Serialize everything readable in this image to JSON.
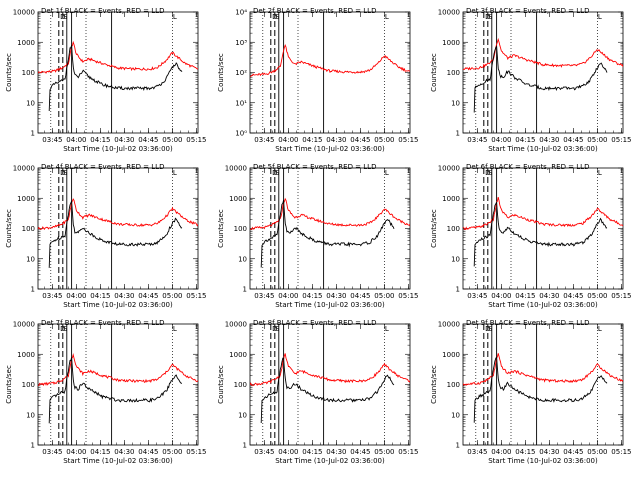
{
  "figure": {
    "panels": [
      {
        "title": "Det 1f BLACK = Events, RED = LLD"
      },
      {
        "title": "Det 2f BLACK = Events, RED = LLD"
      },
      {
        "title": "Det 3f BLACK = Events, RED = LLD"
      },
      {
        "title": "Det 4f BLACK = Events, RED = LLD"
      },
      {
        "title": "Det 5f BLACK = Events, RED = LLD"
      },
      {
        "title": "Det 6f BLACK = Events, RED = LLD"
      },
      {
        "title": "Det 7f BLACK = Events, RED = LLD"
      },
      {
        "title": "Det 8f BLACK = Events, RED = LLD"
      },
      {
        "title": "Det 9f BLACK = Events, RED = LLD"
      }
    ],
    "ylabel": "Counts/sec",
    "xlabel": "Start Time (10-Jul-02 03:36:00)",
    "xticks": [
      "03:45",
      "04:00",
      "04:15",
      "04:30",
      "04:45",
      "05:00",
      "05:15"
    ],
    "yticks_standard": [
      "1",
      "10",
      "100",
      "1000",
      "10000"
    ],
    "yticks_panel2": [
      "10⁰",
      "10¹",
      "10²",
      "10³",
      "10⁴"
    ],
    "markers": {
      "d": "D",
      "s": "S",
      "l": "L"
    },
    "colors": {
      "events": "#000000",
      "lld": "#ff0000"
    }
  },
  "chart_data": {
    "type": "line",
    "grid": "3x3",
    "x_range_minutes": [
      0,
      100
    ],
    "x_start": "03:36:00",
    "ylim_log": [
      1,
      10000
    ],
    "yscale": "log",
    "xlabel": "Start Time (10-Jul-02 03:36:00)",
    "ylabel": "Counts/sec",
    "series_names": [
      "Events (black)",
      "LLD (red)"
    ],
    "vertical_lines_minutes": {
      "dotted": [
        8,
        30,
        84
      ],
      "dashed": [
        13,
        15.5
      ],
      "solid": [
        18,
        21,
        46
      ]
    },
    "profile_lld": {
      "x": [
        0,
        10,
        15,
        19,
        21,
        22,
        24,
        26,
        28,
        32,
        40,
        50,
        60,
        70,
        75,
        80,
        84,
        87,
        92,
        97,
        100
      ],
      "y": [
        100,
        110,
        140,
        200,
        700,
        1000,
        400,
        300,
        230,
        280,
        200,
        140,
        130,
        130,
        150,
        250,
        450,
        330,
        200,
        150,
        130
      ]
    },
    "profile_events": {
      "x": [
        7,
        7.5,
        10,
        14,
        17,
        18,
        20,
        21,
        22,
        23,
        25,
        28,
        32,
        40,
        50,
        60,
        70,
        75,
        80,
        84,
        86,
        90
      ],
      "y": [
        5,
        30,
        40,
        50,
        60,
        150,
        600,
        800,
        150,
        80,
        70,
        110,
        70,
        40,
        30,
        30,
        30,
        35,
        60,
        150,
        200,
        100
      ]
    },
    "panel_scale_lld": [
      1,
      0.8,
      1.3,
      1,
      1,
      1,
      1,
      1,
      1
    ],
    "panel_scale_events": [
      1,
      0,
      1,
      1,
      1,
      1,
      1,
      1,
      1
    ]
  }
}
